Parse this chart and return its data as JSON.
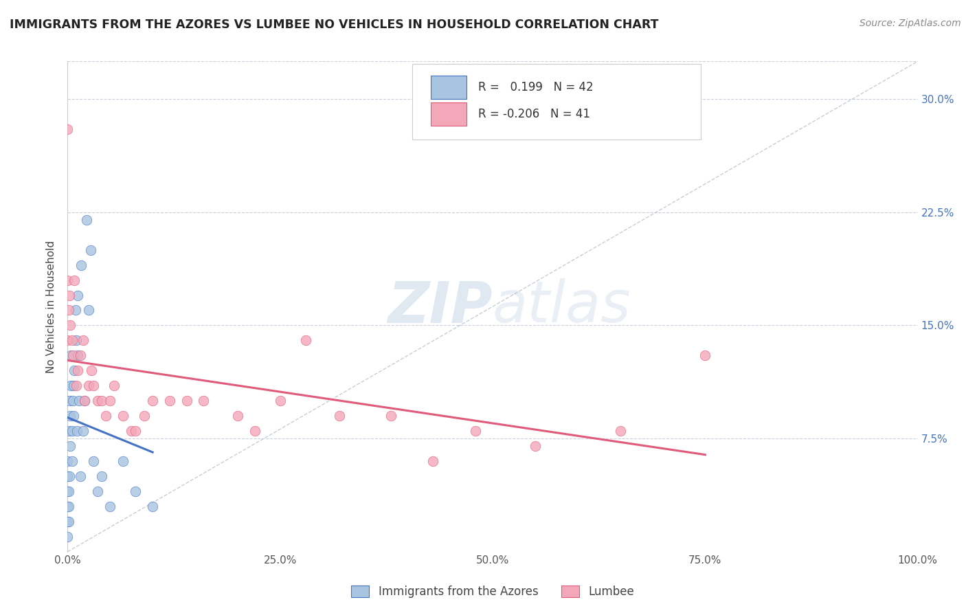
{
  "title": "IMMIGRANTS FROM THE AZORES VS LUMBEE NO VEHICLES IN HOUSEHOLD CORRELATION CHART",
  "source": "Source: ZipAtlas.com",
  "ylabel": "No Vehicles in Household",
  "legend_label1": "Immigrants from the Azores",
  "legend_label2": "Lumbee",
  "r1": 0.199,
  "n1": 42,
  "r2": -0.206,
  "n2": 41,
  "xlim": [
    0.0,
    1.0
  ],
  "ylim": [
    0.0,
    0.325
  ],
  "xticks": [
    0.0,
    0.25,
    0.5,
    0.75,
    1.0
  ],
  "xtick_labels": [
    "0.0%",
    "25.0%",
    "50.0%",
    "75.0%",
    "100.0%"
  ],
  "ytick_labels_right": [
    "7.5%",
    "15.0%",
    "22.5%",
    "30.0%"
  ],
  "ytick_vals_right": [
    0.075,
    0.15,
    0.225,
    0.3
  ],
  "color1": "#a8c4e0",
  "color2": "#f4a7b9",
  "line_color1": "#4472c4",
  "line_color2": "#e05a7a",
  "watermark_zip": "ZIP",
  "watermark_atlas": "atlas",
  "background_color": "#ffffff",
  "scatter1_x": [
    0.0,
    0.0,
    0.0,
    0.0,
    0.0,
    0.0,
    0.001,
    0.001,
    0.001,
    0.002,
    0.002,
    0.002,
    0.003,
    0.003,
    0.004,
    0.004,
    0.005,
    0.005,
    0.006,
    0.007,
    0.007,
    0.008,
    0.009,
    0.01,
    0.011,
    0.012,
    0.012,
    0.013,
    0.015,
    0.016,
    0.018,
    0.02,
    0.022,
    0.025,
    0.027,
    0.03,
    0.035,
    0.04,
    0.05,
    0.065,
    0.08,
    0.1
  ],
  "scatter1_y": [
    0.01,
    0.02,
    0.03,
    0.04,
    0.05,
    0.06,
    0.02,
    0.03,
    0.04,
    0.05,
    0.08,
    0.1,
    0.07,
    0.09,
    0.11,
    0.13,
    0.06,
    0.08,
    0.1,
    0.09,
    0.11,
    0.12,
    0.16,
    0.14,
    0.08,
    0.13,
    0.17,
    0.1,
    0.05,
    0.19,
    0.08,
    0.1,
    0.22,
    0.16,
    0.2,
    0.06,
    0.04,
    0.05,
    0.03,
    0.06,
    0.04,
    0.03
  ],
  "scatter2_x": [
    0.0,
    0.0,
    0.0,
    0.001,
    0.002,
    0.003,
    0.005,
    0.006,
    0.008,
    0.01,
    0.012,
    0.015,
    0.018,
    0.02,
    0.025,
    0.028,
    0.03,
    0.035,
    0.04,
    0.045,
    0.05,
    0.055,
    0.065,
    0.075,
    0.08,
    0.09,
    0.1,
    0.12,
    0.14,
    0.16,
    0.2,
    0.22,
    0.25,
    0.28,
    0.32,
    0.38,
    0.43,
    0.48,
    0.55,
    0.65,
    0.75
  ],
  "scatter2_y": [
    0.28,
    0.18,
    0.14,
    0.16,
    0.17,
    0.15,
    0.14,
    0.13,
    0.18,
    0.11,
    0.12,
    0.13,
    0.14,
    0.1,
    0.11,
    0.12,
    0.11,
    0.1,
    0.1,
    0.09,
    0.1,
    0.11,
    0.09,
    0.08,
    0.08,
    0.09,
    0.1,
    0.1,
    0.1,
    0.1,
    0.09,
    0.08,
    0.1,
    0.14,
    0.09,
    0.09,
    0.06,
    0.08,
    0.07,
    0.08,
    0.13
  ]
}
